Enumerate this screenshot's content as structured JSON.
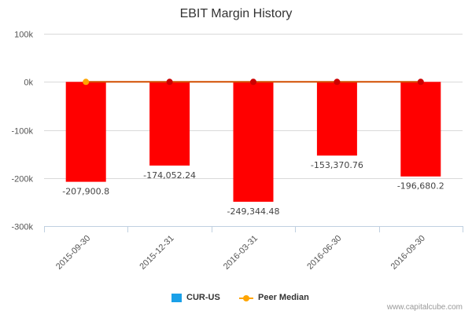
{
  "colors": {
    "bar": "#ff0000",
    "median_line": "#d24f00",
    "median_dot_first": "#ffa500",
    "median_dot": "#cc0000",
    "legend_cur": "#1aa0e8",
    "legend_peer": "#ffa500",
    "grid": "#d9d9d9"
  },
  "legend": {
    "cur_label": "CUR-US",
    "peer_label": "Peer Median"
  },
  "credit": "www.capitalcube.com",
  "chart_data": {
    "type": "bar",
    "title": "EBIT Margin History",
    "xlabel": "",
    "ylabel": "",
    "ylim": [
      -300000,
      100000
    ],
    "yticks": [
      100000,
      0,
      -100000,
      -200000,
      -300000
    ],
    "ytick_labels": [
      "100k",
      "0k",
      "-100k",
      "-200k",
      "-300k"
    ],
    "categories": [
      "2015-09-30",
      "2015-12-31",
      "2016-03-31",
      "2016-06-30",
      "2016-09-30"
    ],
    "series": [
      {
        "name": "CUR-US",
        "kind": "bar",
        "values": [
          -207900.8,
          -174052.24,
          -249344.48,
          -153370.76,
          -196680.2
        ],
        "data_labels": [
          "-207,900.8",
          "-174,052.24",
          "-249,344.48",
          "-153,370.76",
          "-196,680.2"
        ]
      },
      {
        "name": "Peer Median",
        "kind": "line",
        "values": [
          0,
          0,
          0,
          0,
          0
        ]
      }
    ],
    "grid": true,
    "legend_position": "bottom"
  }
}
